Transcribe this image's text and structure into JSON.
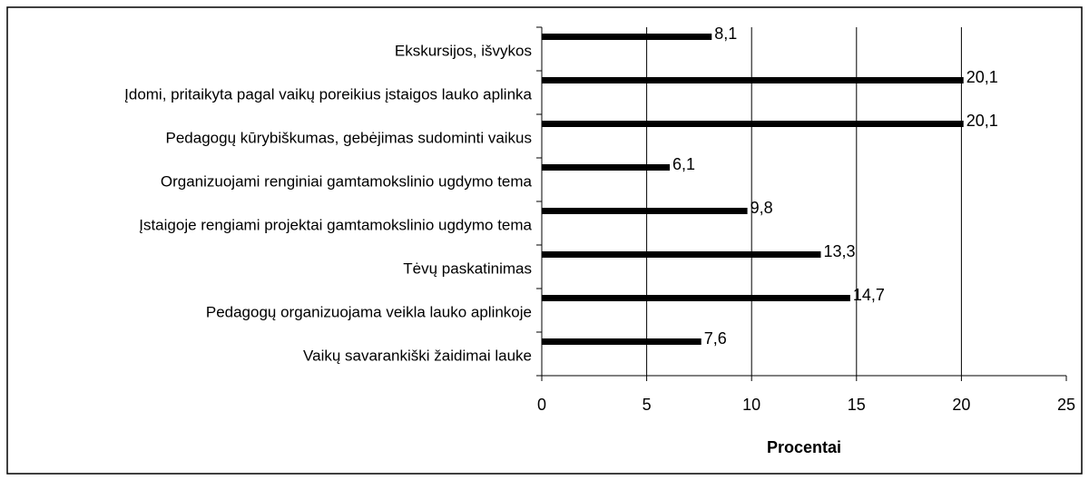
{
  "chart_data": {
    "type": "barh",
    "categories": [
      "Ekskursijos, išvykos",
      "Įdomi, pritaikyta pagal vaikų poreikius įstaigos lauko aplinka",
      "Pedagogų kūrybiškumas, gebėjimas sudominti vaikus",
      "Organizuojami renginiai gamtamokslinio ugdymo tema",
      "Įstaigoje rengiami projektai gamtamokslinio ugdymo tema",
      "Tėvų paskatinimas",
      "Pedagogų organizuojama veikla lauko aplinkoje",
      "Vaikų savarankiški žaidimai lauke"
    ],
    "values": [
      8.1,
      20.1,
      20.1,
      6.1,
      9.8,
      13.3,
      14.7,
      7.6
    ],
    "value_labels": [
      "8,1",
      "20,1",
      "20,1",
      "6,1",
      "9,8",
      "13,3",
      "14,7",
      "7,6"
    ],
    "color": "#000000",
    "xlabel": "Procentai",
    "xlim": [
      0,
      25
    ],
    "xticks": [
      0,
      5,
      10,
      15,
      20,
      25
    ],
    "grid": true
  }
}
